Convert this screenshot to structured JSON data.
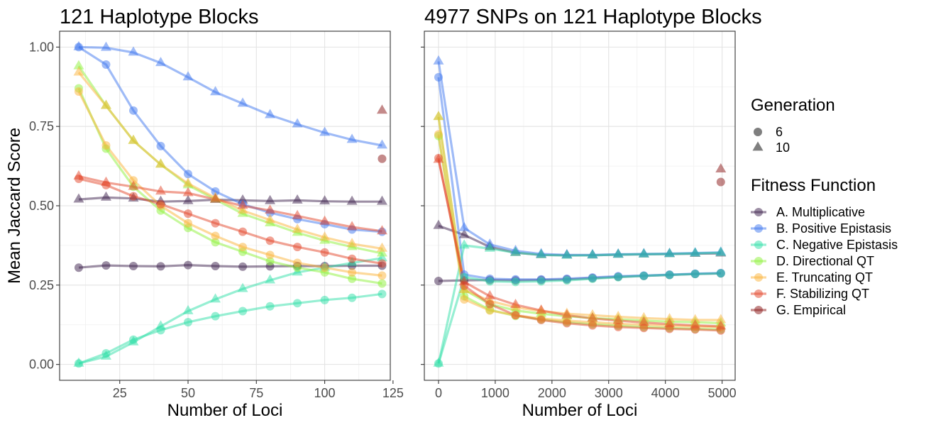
{
  "legend": {
    "generation_title": "Generation",
    "generations": [
      "6",
      "10"
    ],
    "fitness_title": "Fitness Function",
    "functions": [
      {
        "label": "A. Multiplicative",
        "color": "#3b1f4b"
      },
      {
        "label": "B. Positive Epistasis",
        "color": "#3f77f0"
      },
      {
        "label": "C. Negative Epistasis",
        "color": "#2fe0a8"
      },
      {
        "label": "D. Directional QT",
        "color": "#8ef23a"
      },
      {
        "label": "E. Truncating QT",
        "color": "#fbb33a"
      },
      {
        "label": "F. Stabilizing QT",
        "color": "#e4462a"
      },
      {
        "label": "G. Empirical",
        "color": "#8a1515"
      }
    ]
  },
  "chart_data": [
    {
      "type": "line",
      "title": "121 Haplotype Blocks",
      "xlabel": "Number of Loci",
      "ylabel": "Mean Jaccard Score",
      "xlim": [
        3,
        124
      ],
      "ylim": [
        -0.05,
        1.05
      ],
      "xticks": [
        25,
        50,
        75,
        100,
        125
      ],
      "xtick_labels": [
        "25",
        "50",
        "75",
        "100",
        "125"
      ],
      "yticks": [
        0,
        0.25,
        0.5,
        0.75,
        1.0
      ],
      "ytick_labels": [
        "0.00",
        "0.25",
        "0.50",
        "0.75",
        "1.00"
      ],
      "grid": true,
      "x": [
        10,
        20,
        30,
        40,
        50,
        60,
        70,
        80,
        90,
        100,
        110,
        121
      ],
      "series": [
        {
          "name": "A. Multiplicative",
          "generation": "6",
          "values": [
            0.305,
            0.312,
            0.31,
            0.309,
            0.313,
            0.31,
            0.308,
            0.309,
            0.31,
            0.31,
            0.311,
            0.311
          ]
        },
        {
          "name": "A. Multiplicative",
          "generation": "10",
          "values": [
            0.52,
            0.526,
            0.523,
            0.513,
            0.515,
            0.519,
            0.517,
            0.515,
            0.517,
            0.514,
            0.513,
            0.513
          ]
        },
        {
          "name": "B. Positive Epistasis",
          "generation": "6",
          "values": [
            1.0,
            0.945,
            0.8,
            0.688,
            0.6,
            0.545,
            0.505,
            0.478,
            0.458,
            0.442,
            0.425,
            0.418
          ]
        },
        {
          "name": "B. Positive Epistasis",
          "generation": "10",
          "values": [
            1.0,
            0.998,
            0.983,
            0.95,
            0.905,
            0.858,
            0.822,
            0.786,
            0.757,
            0.73,
            0.708,
            0.69
          ]
        },
        {
          "name": "C. Negative Epistasis",
          "generation": "6",
          "values": [
            0.003,
            0.035,
            0.078,
            0.108,
            0.133,
            0.152,
            0.168,
            0.183,
            0.193,
            0.203,
            0.21,
            0.222
          ]
        },
        {
          "name": "C. Negative Epistasis",
          "generation": "10",
          "values": [
            0.003,
            0.025,
            0.07,
            0.12,
            0.168,
            0.205,
            0.238,
            0.265,
            0.29,
            0.305,
            0.32,
            0.335
          ]
        },
        {
          "name": "D. Directional QT",
          "generation": "6",
          "values": [
            0.87,
            0.68,
            0.56,
            0.485,
            0.43,
            0.385,
            0.355,
            0.325,
            0.305,
            0.29,
            0.27,
            0.255
          ]
        },
        {
          "name": "D. Directional QT",
          "generation": "10",
          "values": [
            0.94,
            0.815,
            0.705,
            0.63,
            0.565,
            0.52,
            0.475,
            0.445,
            0.415,
            0.39,
            0.37,
            0.35
          ]
        },
        {
          "name": "E. Truncating QT",
          "generation": "6",
          "values": [
            0.86,
            0.69,
            0.58,
            0.5,
            0.445,
            0.405,
            0.37,
            0.345,
            0.32,
            0.305,
            0.29,
            0.28
          ]
        },
        {
          "name": "E. Truncating QT",
          "generation": "10",
          "values": [
            0.92,
            0.815,
            0.705,
            0.63,
            0.57,
            0.525,
            0.485,
            0.455,
            0.425,
            0.4,
            0.38,
            0.365
          ]
        },
        {
          "name": "F. Stabilizing QT",
          "generation": "6",
          "values": [
            0.585,
            0.565,
            0.53,
            0.505,
            0.475,
            0.445,
            0.418,
            0.39,
            0.37,
            0.353,
            0.333,
            0.318
          ]
        },
        {
          "name": "F. Stabilizing QT",
          "generation": "10",
          "values": [
            0.593,
            0.573,
            0.56,
            0.545,
            0.54,
            0.52,
            0.5,
            0.485,
            0.468,
            0.45,
            0.433,
            0.42
          ]
        },
        {
          "name": "G. Empirical",
          "generation": "6",
          "points": [
            [
              121,
              0.648
            ]
          ]
        },
        {
          "name": "G. Empirical",
          "generation": "10",
          "points": [
            [
              121,
              0.8
            ]
          ]
        }
      ]
    },
    {
      "type": "line",
      "title": "4977 SNPs on 121 Haplotype Blocks",
      "xlabel": "Number of Loci",
      "ylabel": "",
      "xlim": [
        -250,
        5230
      ],
      "ylim": [
        -0.05,
        1.05
      ],
      "xticks": [
        0,
        1000,
        2000,
        3000,
        4000,
        5000
      ],
      "xtick_labels": [
        "0",
        "1000",
        "2000",
        "3000",
        "4000",
        "5000"
      ],
      "yticks": [
        0,
        0.25,
        0.5,
        0.75,
        1.0
      ],
      "ytick_labels": [
        "",
        "",
        "",
        "",
        ""
      ],
      "grid": true,
      "x": [
        0,
        453,
        905,
        1358,
        1810,
        2263,
        2715,
        3168,
        3620,
        4073,
        4525,
        4977
      ],
      "series": [
        {
          "name": "A. Multiplicative",
          "generation": "6",
          "values": [
            0.263,
            0.265,
            0.266,
            0.265,
            0.266,
            0.268,
            0.272,
            0.276,
            0.279,
            0.282,
            0.285,
            0.287
          ]
        },
        {
          "name": "A. Multiplicative",
          "generation": "10",
          "values": [
            0.437,
            0.408,
            0.37,
            0.352,
            0.345,
            0.344,
            0.344,
            0.346,
            0.347,
            0.348,
            0.349,
            0.35
          ]
        },
        {
          "name": "B. Positive Epistasis",
          "generation": "6",
          "values": [
            0.905,
            0.283,
            0.27,
            0.268,
            0.268,
            0.27,
            0.274,
            0.278,
            0.28,
            0.283,
            0.286,
            0.288
          ]
        },
        {
          "name": "B. Positive Epistasis",
          "generation": "10",
          "values": [
            0.955,
            0.43,
            0.378,
            0.358,
            0.348,
            0.345,
            0.345,
            0.347,
            0.348,
            0.349,
            0.351,
            0.353
          ]
        },
        {
          "name": "C. Negative Epistasis",
          "generation": "6",
          "values": [
            0.003,
            0.275,
            0.262,
            0.26,
            0.262,
            0.265,
            0.27,
            0.275,
            0.279,
            0.282,
            0.285,
            0.287
          ]
        },
        {
          "name": "C. Negative Epistasis",
          "generation": "10",
          "values": [
            0.003,
            0.375,
            0.365,
            0.352,
            0.345,
            0.343,
            0.344,
            0.346,
            0.347,
            0.348,
            0.35,
            0.352
          ]
        },
        {
          "name": "D. Directional QT",
          "generation": "6",
          "values": [
            0.72,
            0.215,
            0.172,
            0.153,
            0.142,
            0.133,
            0.127,
            0.122,
            0.118,
            0.115,
            0.112,
            0.11
          ]
        },
        {
          "name": "D. Directional QT",
          "generation": "10",
          "values": [
            0.78,
            0.235,
            0.19,
            0.17,
            0.16,
            0.152,
            0.146,
            0.142,
            0.138,
            0.135,
            0.133,
            0.13
          ]
        },
        {
          "name": "E. Truncating QT",
          "generation": "6",
          "values": [
            0.725,
            0.205,
            0.17,
            0.155,
            0.145,
            0.138,
            0.133,
            0.128,
            0.125,
            0.122,
            0.12,
            0.118
          ]
        },
        {
          "name": "E. Truncating QT",
          "generation": "10",
          "values": [
            0.78,
            0.235,
            0.2,
            0.18,
            0.168,
            0.16,
            0.155,
            0.15,
            0.146,
            0.143,
            0.14,
            0.14
          ]
        },
        {
          "name": "F. Stabilizing QT",
          "generation": "6",
          "values": [
            0.65,
            0.248,
            0.19,
            0.155,
            0.14,
            0.13,
            0.123,
            0.118,
            0.115,
            0.112,
            0.11,
            0.107
          ]
        },
        {
          "name": "F. Stabilizing QT",
          "generation": "10",
          "values": [
            0.645,
            0.26,
            0.215,
            0.188,
            0.17,
            0.155,
            0.145,
            0.138,
            0.132,
            0.127,
            0.123,
            0.12
          ]
        },
        {
          "name": "G. Empirical",
          "generation": "6",
          "points": [
            [
              4977,
              0.575
            ]
          ]
        },
        {
          "name": "G. Empirical",
          "generation": "10",
          "points": [
            [
              4977,
              0.615
            ]
          ]
        }
      ]
    }
  ]
}
